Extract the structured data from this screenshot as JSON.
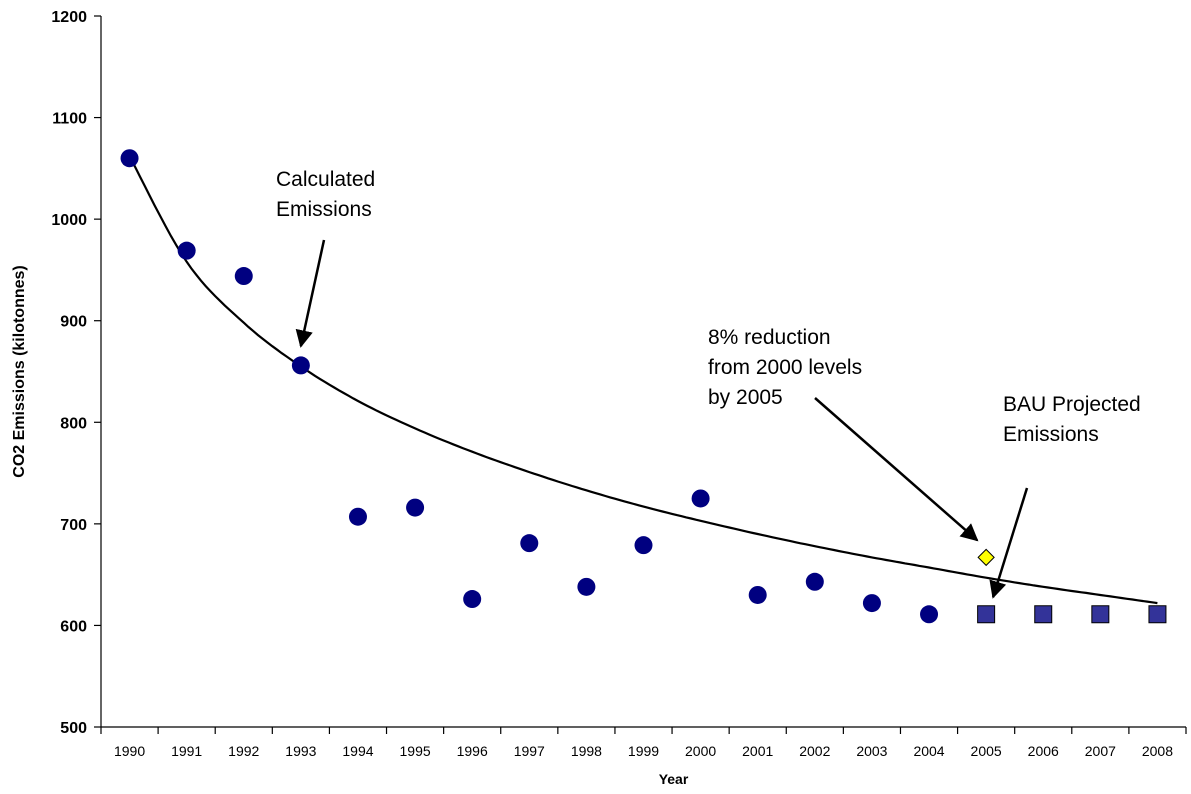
{
  "chart_data": {
    "type": "scatter",
    "xlabel": "Year",
    "ylabel": "CO2 Emissions (kilotonnes)",
    "ylim": [
      500,
      1200
    ],
    "yticks": [
      500,
      600,
      700,
      800,
      900,
      1000,
      1100,
      1200
    ],
    "categories": [
      "1990",
      "1991",
      "1992",
      "1993",
      "1994",
      "1995",
      "1996",
      "1997",
      "1998",
      "1999",
      "2000",
      "2001",
      "2002",
      "2003",
      "2004",
      "2005",
      "2006",
      "2007",
      "2008"
    ],
    "grid": false,
    "series": [
      {
        "name": "Calculated Emissions",
        "marker": "circle",
        "color": "#000080",
        "x": [
          "1990",
          "1991",
          "1992",
          "1993",
          "1994",
          "1995",
          "1996",
          "1997",
          "1998",
          "1999",
          "2000",
          "2001",
          "2002",
          "2003",
          "2004"
        ],
        "values": [
          1060,
          969,
          944,
          856,
          707,
          716,
          626,
          681,
          638,
          679,
          725,
          630,
          643,
          622,
          611
        ]
      },
      {
        "name": "BAU Projected Emissions",
        "marker": "square",
        "color": "#333399",
        "x": [
          "2005",
          "2006",
          "2007",
          "2008"
        ],
        "values": [
          611,
          611,
          611,
          611
        ]
      },
      {
        "name": "8% reduction from 2000 levels by 2005",
        "marker": "diamond",
        "color": "#ffff00",
        "x": [
          "2005"
        ],
        "values": [
          667
        ]
      }
    ],
    "trendline": {
      "type": "logarithmic",
      "color": "#000000",
      "x": [
        "1990",
        "1991",
        "1992",
        "1993",
        "1994",
        "1995",
        "1996",
        "1997",
        "1998",
        "1999",
        "2000",
        "2001",
        "2002",
        "2003",
        "2004",
        "2005",
        "2006",
        "2007",
        "2008"
      ],
      "values": [
        1062,
        958,
        898,
        855,
        821,
        794,
        771,
        751,
        733,
        717,
        703,
        690,
        678,
        667,
        657,
        647,
        638,
        630,
        622
      ]
    },
    "annotations": [
      {
        "lines": [
          "Calculated",
          "Emissions"
        ],
        "arrow_to": {
          "x": "1993",
          "y": 875
        }
      },
      {
        "lines": [
          "8% reduction",
          "from 2000 levels",
          "by 2005"
        ],
        "arrow_to": {
          "x": "2005",
          "y": 676
        }
      },
      {
        "lines": [
          "BAU Projected",
          "Emissions"
        ],
        "arrow_to": {
          "x": "2005",
          "y": 622
        }
      }
    ]
  }
}
